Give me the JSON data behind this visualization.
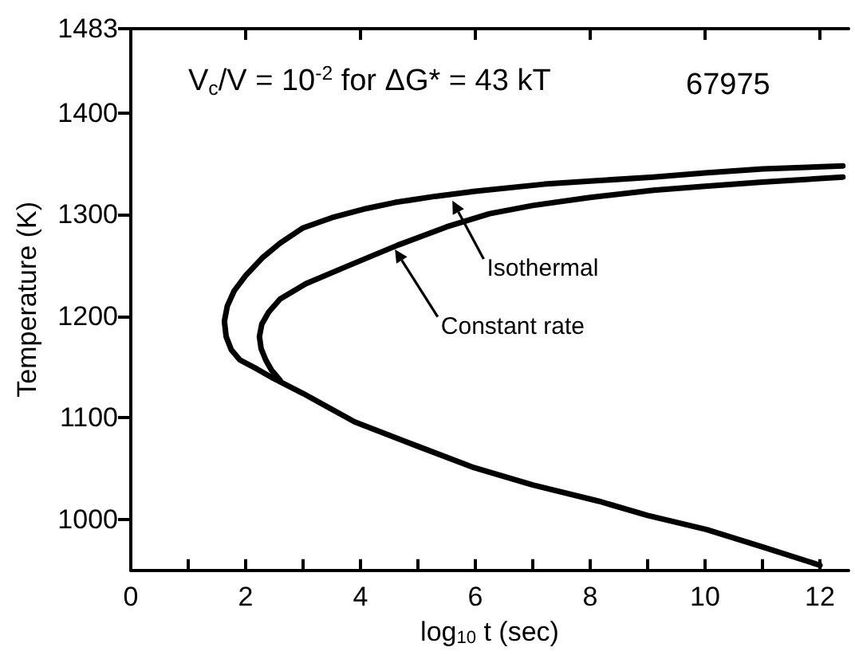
{
  "chart_data": {
    "type": "line",
    "xlabel": "log$_{10}$ t (sec)",
    "ylabel": "Temperature (K)",
    "annotations": [
      "V$_{c}$/V = 10$^{-2}$ for ΔG* = 43 kT",
      "67975"
    ],
    "series": [
      {
        "name": "Isothermal",
        "color": "#000000",
        "x": [
          12.4,
          11,
          10,
          9.1,
          8,
          7.2,
          6,
          5.3,
          4.6,
          4.1,
          3.5,
          3,
          2.6,
          2.3,
          2.0,
          1.8,
          1.68,
          1.63,
          1.66,
          1.75,
          1.9,
          2.2,
          2.48,
          3.0,
          3.9,
          5.0,
          5.98,
          7,
          8.15,
          9,
          10.03,
          11,
          12.0
        ],
        "values": [
          1348,
          1345,
          1341,
          1337,
          1333,
          1330,
          1323,
          1318,
          1312,
          1306,
          1297,
          1287,
          1272,
          1258,
          1240,
          1225,
          1210,
          1195,
          1180,
          1167,
          1157,
          1148,
          1139,
          1124,
          1096,
          1072,
          1051,
          1034,
          1018,
          1004,
          990,
          973,
          955
        ]
      },
      {
        "name": "Constant rate",
        "color": "#000000",
        "x": [
          12.4,
          11,
          10,
          9.1,
          8,
          7,
          6.25,
          5.5,
          4.65,
          3.8,
          3.05,
          2.6,
          2.4,
          2.28,
          2.24,
          2.27,
          2.35,
          2.45,
          2.6
        ],
        "values": [
          1337,
          1332,
          1328,
          1324,
          1317,
          1309,
          1301,
          1288,
          1270,
          1250,
          1232,
          1217,
          1204,
          1192,
          1180,
          1168,
          1157,
          1147,
          1137
        ]
      }
    ],
    "xlim": [
      0,
      12.5
    ],
    "xticks": [
      0,
      {
        "value": 1,
        "label": null
      },
      2,
      {
        "value": 3,
        "label": null
      },
      4,
      {
        "value": 5,
        "label": null
      },
      6,
      {
        "value": 7,
        "label": null
      },
      8,
      {
        "value": 9,
        "label": null
      },
      10,
      {
        "value": 11,
        "label": null
      },
      12
    ],
    "ylim": [
      950,
      1483
    ],
    "yticks": [
      1000,
      1100,
      1200,
      1300,
      1400,
      1483
    ],
    "grid": false,
    "legend": "center",
    "marker": "none",
    "line_style": "solid"
  }
}
